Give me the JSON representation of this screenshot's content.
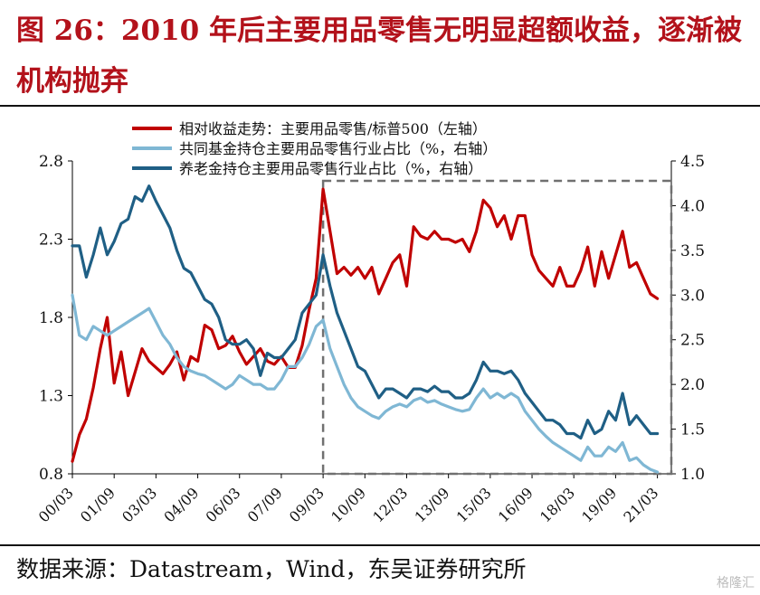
{
  "figure": {
    "title": "图 26：2010 年后主要用品零售无明显超额收益，逐渐被机构抛弃",
    "source": "数据来源：Datastream，Wind，东吴证券研究所",
    "watermark": "格隆汇"
  },
  "colors": {
    "red": "#c00000",
    "light_blue": "#7fb7d4",
    "dark_blue": "#1f5f85",
    "box": "#707070",
    "title": "#b3121b"
  },
  "chart_data": {
    "type": "line",
    "title": "",
    "x_axis": {
      "tick_labels": [
        "00/03",
        "01/09",
        "03/03",
        "04/09",
        "06/03",
        "07/09",
        "09/03",
        "10/09",
        "12/03",
        "13/09",
        "15/03",
        "16/09",
        "18/03",
        "19/09",
        "21/03"
      ],
      "range": [
        "2000-03",
        "2021-09"
      ]
    },
    "y_left": {
      "ticks": [
        0.8,
        1.3,
        1.8,
        2.3,
        2.8
      ],
      "lim": [
        0.8,
        2.8
      ]
    },
    "y_right": {
      "ticks": [
        1.0,
        1.5,
        2.0,
        2.5,
        3.0,
        3.5,
        4.0,
        4.5
      ],
      "lim": [
        1.0,
        4.5
      ]
    },
    "legend": {
      "position": "top"
    },
    "highlight_box": {
      "x_start": "2009-03",
      "x_end": "2021-09",
      "style": "dashed"
    },
    "series": [
      {
        "name": "相对收益走势：主要用品零售/标普500（左轴）",
        "axis": "left",
        "color": "#c00000",
        "points": [
          [
            "2000-03",
            0.88
          ],
          [
            "2000-06",
            1.05
          ],
          [
            "2000-09",
            1.15
          ],
          [
            "2000-12",
            1.35
          ],
          [
            "2001-03",
            1.6
          ],
          [
            "2001-06",
            1.8
          ],
          [
            "2001-09",
            1.38
          ],
          [
            "2001-12",
            1.58
          ],
          [
            "2002-03",
            1.3
          ],
          [
            "2002-06",
            1.45
          ],
          [
            "2002-09",
            1.6
          ],
          [
            "2002-12",
            1.52
          ],
          [
            "2003-03",
            1.48
          ],
          [
            "2003-06",
            1.44
          ],
          [
            "2003-09",
            1.5
          ],
          [
            "2003-12",
            1.58
          ],
          [
            "2004-03",
            1.4
          ],
          [
            "2004-06",
            1.55
          ],
          [
            "2004-09",
            1.52
          ],
          [
            "2004-12",
            1.75
          ],
          [
            "2005-03",
            1.72
          ],
          [
            "2005-06",
            1.6
          ],
          [
            "2005-09",
            1.62
          ],
          [
            "2005-12",
            1.68
          ],
          [
            "2006-03",
            1.58
          ],
          [
            "2006-06",
            1.5
          ],
          [
            "2006-09",
            1.55
          ],
          [
            "2006-12",
            1.6
          ],
          [
            "2007-03",
            1.52
          ],
          [
            "2007-06",
            1.5
          ],
          [
            "2007-09",
            1.55
          ],
          [
            "2007-12",
            1.48
          ],
          [
            "2008-03",
            1.48
          ],
          [
            "2008-06",
            1.62
          ],
          [
            "2008-09",
            1.85
          ],
          [
            "2008-12",
            2.05
          ],
          [
            "2009-03",
            2.62
          ],
          [
            "2009-06",
            2.35
          ],
          [
            "2009-09",
            2.08
          ],
          [
            "2009-12",
            2.12
          ],
          [
            "2010-03",
            2.07
          ],
          [
            "2010-06",
            2.12
          ],
          [
            "2010-09",
            2.05
          ],
          [
            "2010-12",
            2.12
          ],
          [
            "2011-03",
            1.95
          ],
          [
            "2011-06",
            2.05
          ],
          [
            "2011-09",
            2.15
          ],
          [
            "2011-12",
            2.2
          ],
          [
            "2012-03",
            2.0
          ],
          [
            "2012-06",
            2.38
          ],
          [
            "2012-09",
            2.32
          ],
          [
            "2012-12",
            2.3
          ],
          [
            "2013-03",
            2.35
          ],
          [
            "2013-06",
            2.3
          ],
          [
            "2013-09",
            2.3
          ],
          [
            "2013-12",
            2.28
          ],
          [
            "2014-03",
            2.3
          ],
          [
            "2014-06",
            2.22
          ],
          [
            "2014-09",
            2.35
          ],
          [
            "2014-12",
            2.55
          ],
          [
            "2015-03",
            2.5
          ],
          [
            "2015-06",
            2.38
          ],
          [
            "2015-09",
            2.45
          ],
          [
            "2015-12",
            2.3
          ],
          [
            "2016-03",
            2.45
          ],
          [
            "2016-06",
            2.45
          ],
          [
            "2016-09",
            2.2
          ],
          [
            "2016-12",
            2.1
          ],
          [
            "2017-03",
            2.05
          ],
          [
            "2017-06",
            2.0
          ],
          [
            "2017-09",
            2.12
          ],
          [
            "2017-12",
            2.0
          ],
          [
            "2018-03",
            2.0
          ],
          [
            "2018-06",
            2.1
          ],
          [
            "2018-09",
            2.25
          ],
          [
            "2018-12",
            2.0
          ],
          [
            "2019-03",
            2.22
          ],
          [
            "2019-06",
            2.05
          ],
          [
            "2019-09",
            2.2
          ],
          [
            "2019-12",
            2.35
          ],
          [
            "2020-03",
            2.12
          ],
          [
            "2020-06",
            2.15
          ],
          [
            "2020-09",
            2.05
          ],
          [
            "2020-12",
            1.95
          ],
          [
            "2021-03",
            1.92
          ]
        ]
      },
      {
        "name": "共同基金持仓主要用品零售行业占比（%，右轴）",
        "axis": "right",
        "color": "#7fb7d4",
        "points": [
          [
            "2000-03",
            3.0
          ],
          [
            "2000-06",
            2.55
          ],
          [
            "2000-09",
            2.5
          ],
          [
            "2000-12",
            2.65
          ],
          [
            "2001-03",
            2.6
          ],
          [
            "2001-06",
            2.55
          ],
          [
            "2001-09",
            2.6
          ],
          [
            "2001-12",
            2.65
          ],
          [
            "2002-03",
            2.7
          ],
          [
            "2002-06",
            2.75
          ],
          [
            "2002-09",
            2.8
          ],
          [
            "2002-12",
            2.85
          ],
          [
            "2003-03",
            2.7
          ],
          [
            "2003-06",
            2.55
          ],
          [
            "2003-09",
            2.45
          ],
          [
            "2003-12",
            2.3
          ],
          [
            "2004-03",
            2.2
          ],
          [
            "2004-06",
            2.15
          ],
          [
            "2004-09",
            2.12
          ],
          [
            "2004-12",
            2.1
          ],
          [
            "2005-03",
            2.05
          ],
          [
            "2005-06",
            2.0
          ],
          [
            "2005-09",
            1.95
          ],
          [
            "2005-12",
            2.0
          ],
          [
            "2006-03",
            2.1
          ],
          [
            "2006-06",
            2.05
          ],
          [
            "2006-09",
            2.0
          ],
          [
            "2006-12",
            2.0
          ],
          [
            "2007-03",
            1.95
          ],
          [
            "2007-06",
            1.95
          ],
          [
            "2007-09",
            2.05
          ],
          [
            "2007-12",
            2.2
          ],
          [
            "2008-03",
            2.2
          ],
          [
            "2008-06",
            2.3
          ],
          [
            "2008-09",
            2.45
          ],
          [
            "2008-12",
            2.65
          ],
          [
            "2009-03",
            2.72
          ],
          [
            "2009-06",
            2.4
          ],
          [
            "2009-09",
            2.2
          ],
          [
            "2009-12",
            2.0
          ],
          [
            "2010-03",
            1.85
          ],
          [
            "2010-06",
            1.75
          ],
          [
            "2010-09",
            1.7
          ],
          [
            "2010-12",
            1.65
          ],
          [
            "2011-03",
            1.62
          ],
          [
            "2011-06",
            1.7
          ],
          [
            "2011-09",
            1.75
          ],
          [
            "2011-12",
            1.78
          ],
          [
            "2012-03",
            1.75
          ],
          [
            "2012-06",
            1.82
          ],
          [
            "2012-09",
            1.85
          ],
          [
            "2012-12",
            1.8
          ],
          [
            "2013-03",
            1.82
          ],
          [
            "2013-06",
            1.78
          ],
          [
            "2013-09",
            1.75
          ],
          [
            "2013-12",
            1.72
          ],
          [
            "2014-03",
            1.7
          ],
          [
            "2014-06",
            1.72
          ],
          [
            "2014-09",
            1.85
          ],
          [
            "2014-12",
            1.95
          ],
          [
            "2015-03",
            1.85
          ],
          [
            "2015-06",
            1.9
          ],
          [
            "2015-09",
            1.85
          ],
          [
            "2015-12",
            1.9
          ],
          [
            "2016-03",
            1.85
          ],
          [
            "2016-06",
            1.7
          ],
          [
            "2016-09",
            1.6
          ],
          [
            "2016-12",
            1.5
          ],
          [
            "2017-03",
            1.42
          ],
          [
            "2017-06",
            1.35
          ],
          [
            "2017-09",
            1.3
          ],
          [
            "2017-12",
            1.25
          ],
          [
            "2018-03",
            1.2
          ],
          [
            "2018-06",
            1.15
          ],
          [
            "2018-09",
            1.3
          ],
          [
            "2018-12",
            1.2
          ],
          [
            "2019-03",
            1.2
          ],
          [
            "2019-06",
            1.3
          ],
          [
            "2019-09",
            1.25
          ],
          [
            "2019-12",
            1.35
          ],
          [
            "2020-03",
            1.15
          ],
          [
            "2020-06",
            1.18
          ],
          [
            "2020-09",
            1.1
          ],
          [
            "2020-12",
            1.05
          ],
          [
            "2021-03",
            1.02
          ]
        ]
      },
      {
        "name": "养老金持仓主要用品零售行业占比（%，右轴）",
        "axis": "right",
        "color": "#1f5f85",
        "points": [
          [
            "2000-03",
            3.55
          ],
          [
            "2000-06",
            3.55
          ],
          [
            "2000-09",
            3.2
          ],
          [
            "2000-12",
            3.45
          ],
          [
            "2001-03",
            3.75
          ],
          [
            "2001-06",
            3.45
          ],
          [
            "2001-09",
            3.6
          ],
          [
            "2001-12",
            3.8
          ],
          [
            "2002-03",
            3.85
          ],
          [
            "2002-06",
            4.1
          ],
          [
            "2002-09",
            4.05
          ],
          [
            "2002-12",
            4.22
          ],
          [
            "2003-03",
            4.05
          ],
          [
            "2003-06",
            3.9
          ],
          [
            "2003-09",
            3.75
          ],
          [
            "2003-12",
            3.5
          ],
          [
            "2004-03",
            3.3
          ],
          [
            "2004-06",
            3.25
          ],
          [
            "2004-09",
            3.1
          ],
          [
            "2004-12",
            2.95
          ],
          [
            "2005-03",
            2.9
          ],
          [
            "2005-06",
            2.75
          ],
          [
            "2005-09",
            2.5
          ],
          [
            "2005-12",
            2.45
          ],
          [
            "2006-03",
            2.45
          ],
          [
            "2006-06",
            2.5
          ],
          [
            "2006-09",
            2.4
          ],
          [
            "2006-12",
            2.1
          ],
          [
            "2007-03",
            2.35
          ],
          [
            "2007-06",
            2.3
          ],
          [
            "2007-09",
            2.3
          ],
          [
            "2007-12",
            2.4
          ],
          [
            "2008-03",
            2.5
          ],
          [
            "2008-06",
            2.8
          ],
          [
            "2008-09",
            2.9
          ],
          [
            "2008-12",
            3.0
          ],
          [
            "2009-03",
            3.45
          ],
          [
            "2009-06",
            3.1
          ],
          [
            "2009-09",
            2.8
          ],
          [
            "2009-12",
            2.6
          ],
          [
            "2010-03",
            2.4
          ],
          [
            "2010-06",
            2.2
          ],
          [
            "2010-09",
            2.15
          ],
          [
            "2010-12",
            2.0
          ],
          [
            "2011-03",
            1.85
          ],
          [
            "2011-06",
            1.95
          ],
          [
            "2011-09",
            1.95
          ],
          [
            "2011-12",
            1.9
          ],
          [
            "2012-03",
            1.85
          ],
          [
            "2012-06",
            1.95
          ],
          [
            "2012-09",
            1.95
          ],
          [
            "2012-12",
            1.92
          ],
          [
            "2013-03",
            1.98
          ],
          [
            "2013-06",
            1.92
          ],
          [
            "2013-09",
            1.92
          ],
          [
            "2013-12",
            1.85
          ],
          [
            "2014-03",
            1.85
          ],
          [
            "2014-06",
            1.9
          ],
          [
            "2014-09",
            2.05
          ],
          [
            "2014-12",
            2.25
          ],
          [
            "2015-03",
            2.15
          ],
          [
            "2015-06",
            2.15
          ],
          [
            "2015-09",
            2.12
          ],
          [
            "2015-12",
            2.15
          ],
          [
            "2016-03",
            2.05
          ],
          [
            "2016-06",
            1.9
          ],
          [
            "2016-09",
            1.8
          ],
          [
            "2016-12",
            1.7
          ],
          [
            "2017-03",
            1.6
          ],
          [
            "2017-06",
            1.6
          ],
          [
            "2017-09",
            1.55
          ],
          [
            "2017-12",
            1.45
          ],
          [
            "2018-03",
            1.45
          ],
          [
            "2018-06",
            1.4
          ],
          [
            "2018-09",
            1.6
          ],
          [
            "2018-12",
            1.45
          ],
          [
            "2019-03",
            1.5
          ],
          [
            "2019-06",
            1.7
          ],
          [
            "2019-09",
            1.6
          ],
          [
            "2019-12",
            1.9
          ],
          [
            "2020-03",
            1.55
          ],
          [
            "2020-06",
            1.65
          ],
          [
            "2020-09",
            1.55
          ],
          [
            "2020-12",
            1.45
          ],
          [
            "2021-03",
            1.45
          ]
        ]
      }
    ]
  }
}
